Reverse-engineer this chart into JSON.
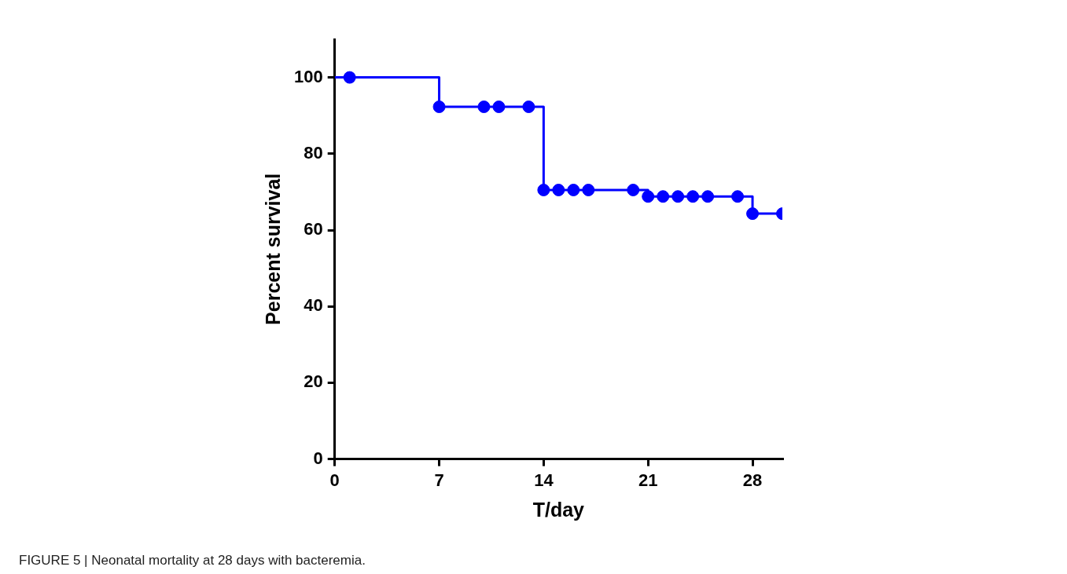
{
  "chart_data": {
    "type": "step",
    "xlabel": "T/day",
    "ylabel": "Percent survival",
    "annotations": [
      "FIGURE 5 | Neonatal mortality at 28 days with bacteremia."
    ],
    "xlim": [
      0,
      30
    ],
    "xticks": [
      0,
      7,
      14,
      21,
      28
    ],
    "ylim": [
      0,
      110
    ],
    "yticks": [
      0,
      20,
      40,
      60,
      80,
      100
    ],
    "grid": false,
    "legend": false,
    "line_style": "solid",
    "series": [
      {
        "color": "#0000ff",
        "marker": "none",
        "x": [
          0,
          7,
          14,
          21,
          28,
          30
        ],
        "values": [
          100,
          92.3,
          70.5,
          68.8,
          64.3,
          64.3
        ]
      },
      {
        "type": "scatter",
        "color": "#0000ff",
        "marker": "circle",
        "x": [
          1,
          7,
          10,
          11,
          13,
          14,
          15,
          16,
          17,
          20,
          21,
          22,
          23,
          24,
          25,
          27,
          28,
          30
        ],
        "values": [
          100,
          92.3,
          92.3,
          92.3,
          92.3,
          70.5,
          70.5,
          70.5,
          70.5,
          70.5,
          68.8,
          68.8,
          68.8,
          68.8,
          68.8,
          68.8,
          64.3,
          64.3
        ]
      }
    ]
  }
}
